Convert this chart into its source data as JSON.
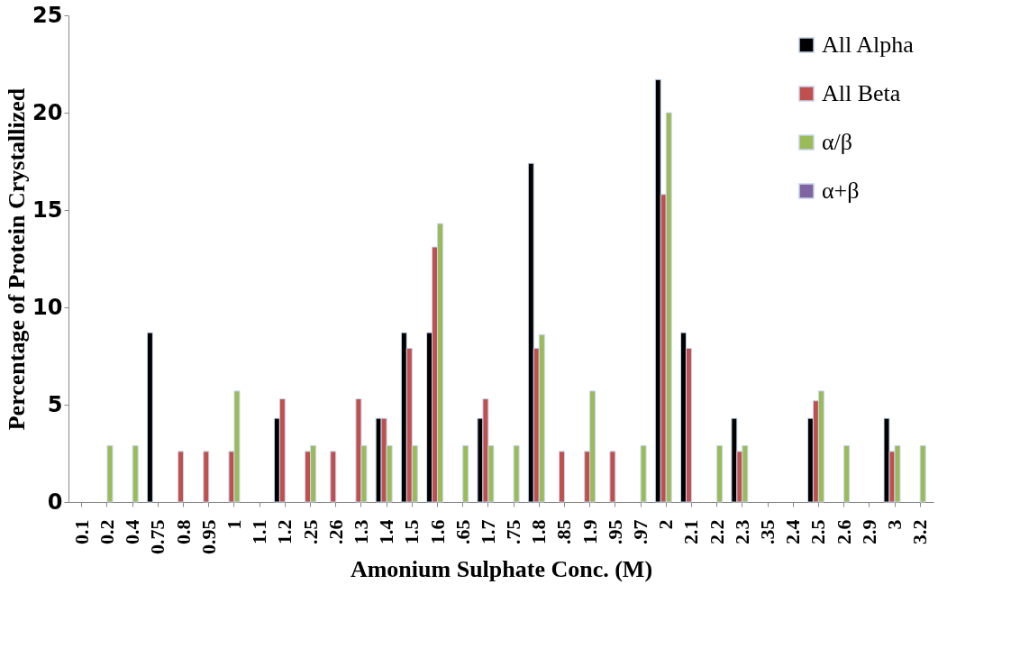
{
  "chart_data": {
    "type": "bar",
    "xlabel": "Amonium Sulphate Conc. (M)",
    "ylabel": "Percentage of Protein Crystallized",
    "categories": [
      "0.1",
      "0.2",
      "0.4",
      "0.75",
      "0.8",
      "0.95",
      "1",
      "1.1",
      "1.2",
      ".25",
      ".26",
      "1.3",
      "1.4",
      "1.5",
      "1.6",
      ".65",
      "1.7",
      ".75",
      "1.8",
      ".85",
      "1.9",
      ".95",
      ".97",
      "2",
      "2.1",
      "2.2",
      "2.3",
      ".35",
      "2.4",
      "2.5",
      "2.6",
      "2.9",
      "3",
      "3.2"
    ],
    "series": [
      {
        "name": "All Alpha",
        "color": "#000000",
        "values": [
          null,
          null,
          null,
          8.7,
          null,
          null,
          null,
          null,
          4.3,
          null,
          null,
          null,
          4.3,
          8.7,
          8.7,
          null,
          4.3,
          null,
          17.4,
          null,
          null,
          null,
          null,
          21.7,
          8.7,
          null,
          4.3,
          null,
          null,
          4.3,
          null,
          null,
          4.3,
          null
        ]
      },
      {
        "name": "All Beta",
        "color": "#c0504d",
        "values": [
          null,
          null,
          null,
          null,
          2.6,
          2.6,
          2.6,
          null,
          5.3,
          2.6,
          2.6,
          5.3,
          4.3,
          7.9,
          13.1,
          null,
          5.3,
          null,
          7.9,
          2.6,
          2.6,
          2.6,
          null,
          15.8,
          7.9,
          null,
          2.6,
          null,
          null,
          5.2,
          null,
          null,
          2.6,
          null
        ]
      },
      {
        "name": "α/β",
        "color": "#9bbb59",
        "values": [
          null,
          2.9,
          2.9,
          null,
          null,
          null,
          5.7,
          null,
          null,
          2.9,
          null,
          2.9,
          2.9,
          2.9,
          14.3,
          2.9,
          2.9,
          2.9,
          8.6,
          null,
          5.7,
          null,
          2.9,
          20,
          null,
          2.9,
          2.9,
          null,
          null,
          5.7,
          2.9,
          null,
          2.9,
          2.9
        ]
      },
      {
        "name": "α+β",
        "color": "#8064a2",
        "values": [
          null,
          null,
          null,
          null,
          null,
          null,
          null,
          null,
          null,
          null,
          null,
          null,
          null,
          null,
          null,
          null,
          null,
          null,
          null,
          null,
          null,
          null,
          null,
          null,
          null,
          null,
          null,
          null,
          null,
          null,
          null,
          null,
          null,
          null
        ]
      }
    ],
    "ylim": [
      0,
      25
    ],
    "yticks": [
      0,
      5,
      10,
      15,
      20,
      25
    ],
    "grid": false,
    "legend": "top right"
  }
}
